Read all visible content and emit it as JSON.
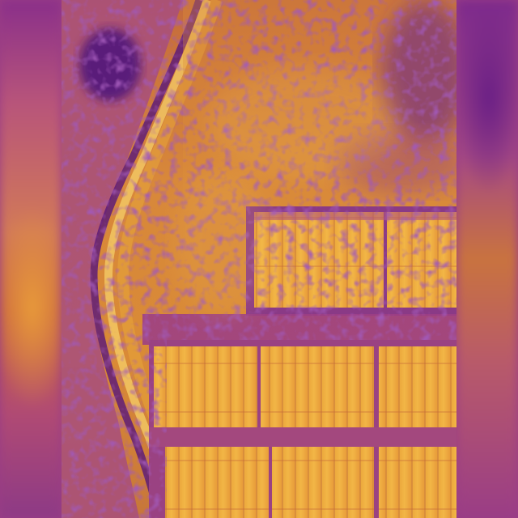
{
  "image": {
    "subject": "thermal-aerial-view",
    "palette": {
      "cold": "#5a1a7a",
      "cool": "#9a3d86",
      "mid": "#c9743a",
      "warm": "#e8a63a",
      "hot": "#f6cf6a"
    }
  }
}
